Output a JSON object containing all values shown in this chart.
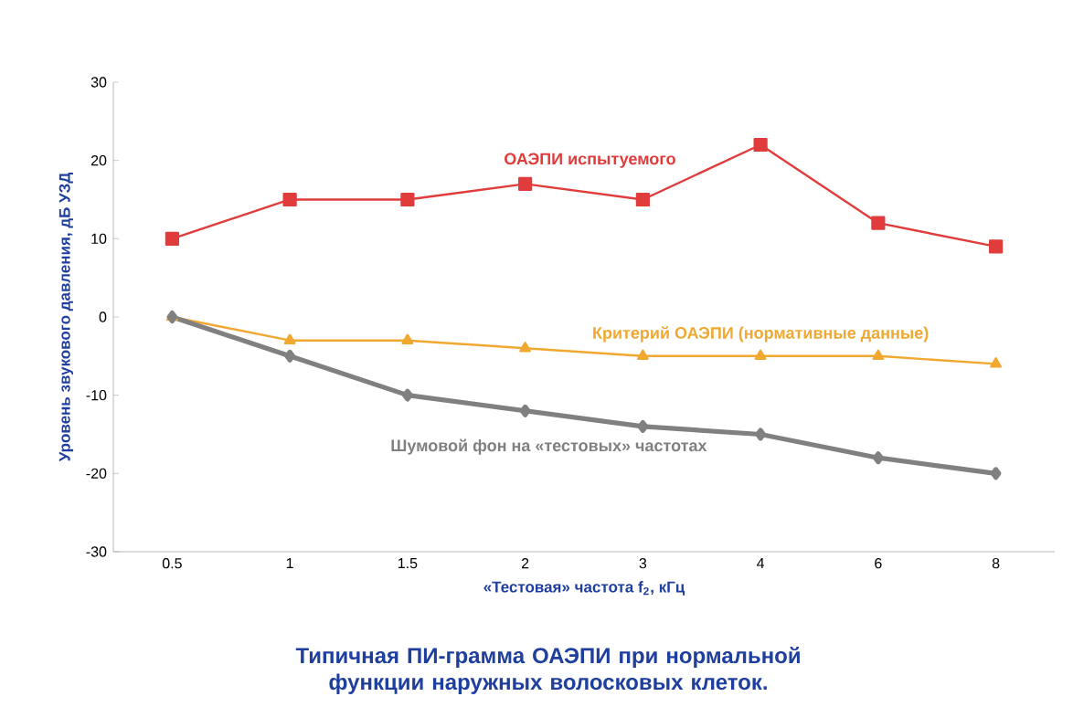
{
  "chart_data": {
    "type": "line",
    "title": "Типичная ПИ-грамма ОАЭПИ при нормальной функции наружных волосковых клеток.",
    "xlabel": "«Тестовая» частота f$_{2}$, кГц",
    "ylabel": "Уровень звукового давления, дБ УЗД",
    "categories": [
      "0.5",
      "1",
      "1.5",
      "2",
      "3",
      "4",
      "6",
      "8"
    ],
    "ylim": [
      -30,
      30
    ],
    "yticks": [
      -30,
      -20,
      -10,
      0,
      10,
      20,
      30
    ],
    "series": [
      {
        "name": "ОАЭПИ испытуемого",
        "color": "#e03c3c",
        "marker": "square",
        "values": [
          10,
          15,
          15,
          17,
          15,
          22,
          12,
          9
        ]
      },
      {
        "name": "Критерий ОАЭПИ (нормативные данные)",
        "color": "#f0a830",
        "marker": "triangle",
        "values": [
          0,
          -3,
          -3,
          -4,
          -5,
          -5,
          -5,
          -6
        ]
      },
      {
        "name": "Шумовой фон на «тестовых» частотах",
        "color": "#808080",
        "marker": "diamond",
        "values": [
          0,
          -5,
          -10,
          -12,
          -14,
          -15,
          -18,
          -20
        ]
      }
    ]
  }
}
